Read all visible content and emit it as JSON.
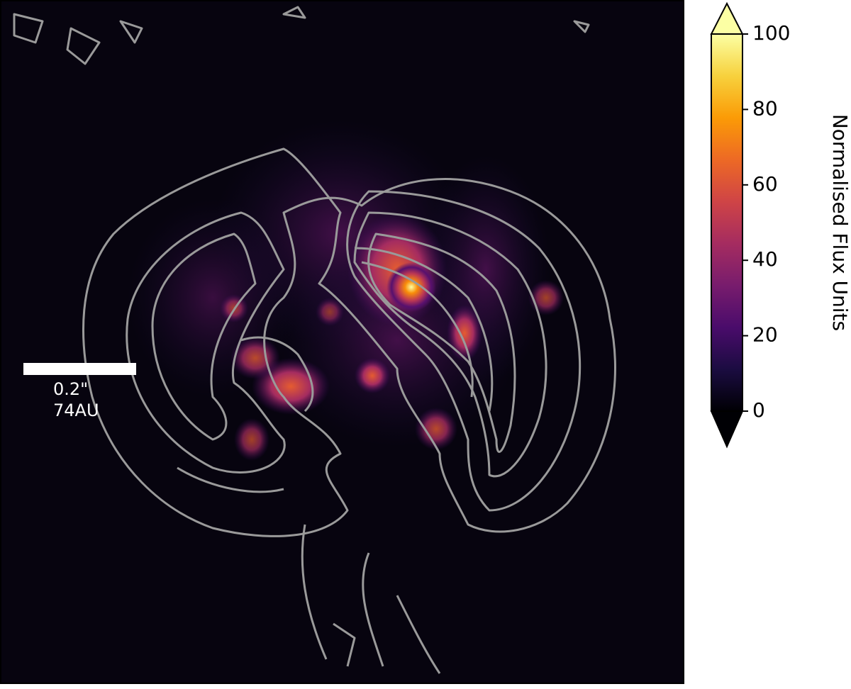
{
  "chart_data": {
    "type": "image",
    "colorbar": {
      "label": "Normalised Flux Units",
      "clim": [
        0,
        100
      ],
      "ticks": [
        0,
        20,
        40,
        60,
        80,
        100
      ],
      "colormap": "inferno",
      "extend": "both"
    },
    "scalebar": {
      "labels": [
        "0.2\"",
        "74AU"
      ]
    },
    "contour_color": "#9a9a9a"
  }
}
